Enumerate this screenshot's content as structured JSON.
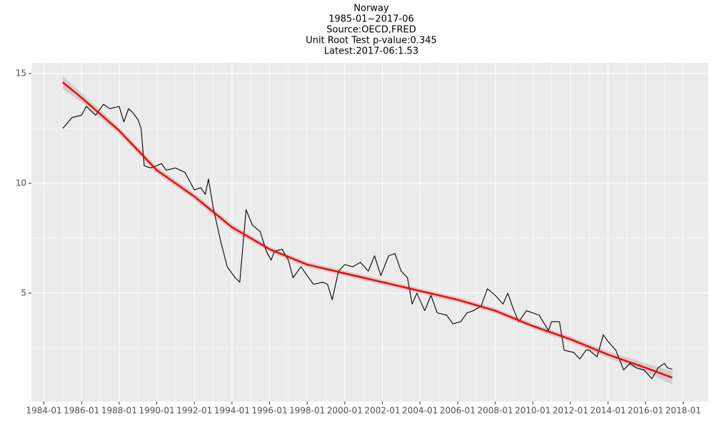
{
  "chart_data": {
    "type": "line",
    "title_lines": [
      "Norway",
      "1985-01~2017-06",
      "Source:OECD,FRED",
      "Unit Root Test p-value:0.345",
      "Latest:2017-06:1.53"
    ],
    "x": [
      "1985-01",
      "1985-07",
      "1986-01",
      "1986-04",
      "1986-10",
      "1987-03",
      "1987-07",
      "1988-01",
      "1988-04",
      "1988-07",
      "1988-10",
      "1989-01",
      "1989-03",
      "1989-05",
      "1989-09",
      "1990-01",
      "1990-04",
      "1990-07",
      "1991-01",
      "1991-07",
      "1992-01",
      "1992-05",
      "1992-08",
      "1992-10",
      "1993-01",
      "1993-06",
      "1993-10",
      "1994-03",
      "1994-06",
      "1994-10",
      "1995-02",
      "1995-07",
      "1995-11",
      "1996-02",
      "1996-04",
      "1996-09",
      "1997-01",
      "1997-04",
      "1997-09",
      "1998-01",
      "1998-05",
      "1998-11",
      "1999-02",
      "1999-05",
      "1999-09",
      "2000-01",
      "2000-06",
      "2000-11",
      "2001-04",
      "2001-08",
      "2001-12",
      "2002-05",
      "2002-09",
      "2003-01",
      "2003-05",
      "2003-08",
      "2003-11",
      "2004-04",
      "2004-08",
      "2004-12",
      "2005-06",
      "2005-10",
      "2006-03",
      "2006-07",
      "2006-11",
      "2007-04",
      "2007-08",
      "2008-01",
      "2008-06",
      "2008-09",
      "2009-01",
      "2009-04",
      "2009-09",
      "2010-01",
      "2010-05",
      "2010-11",
      "2011-01",
      "2011-06",
      "2011-09",
      "2012-03",
      "2012-07",
      "2012-11",
      "2013-01",
      "2013-06",
      "2013-10",
      "2014-01",
      "2014-06",
      "2014-11",
      "2015-03",
      "2015-07",
      "2015-12",
      "2016-05",
      "2016-09",
      "2017-01",
      "2017-03",
      "2017-06"
    ],
    "series": [
      {
        "color": "#000000",
        "values": [
          12.5,
          13.0,
          13.1,
          13.5,
          13.1,
          13.6,
          13.4,
          13.5,
          12.8,
          13.4,
          13.2,
          12.9,
          12.5,
          10.8,
          10.7,
          10.8,
          10.9,
          10.6,
          10.7,
          10.5,
          9.7,
          9.8,
          9.5,
          10.2,
          8.9,
          7.3,
          6.2,
          5.7,
          5.5,
          8.8,
          8.1,
          7.8,
          6.9,
          6.5,
          6.9,
          7.0,
          6.5,
          5.7,
          6.2,
          5.8,
          5.4,
          5.5,
          5.4,
          4.7,
          6.0,
          6.3,
          6.2,
          6.4,
          6.0,
          6.7,
          5.8,
          6.7,
          6.8,
          6.0,
          5.7,
          4.5,
          5.0,
          4.2,
          4.9,
          4.1,
          4.0,
          3.6,
          3.7,
          4.1,
          4.2,
          4.4,
          5.2,
          4.9,
          4.5,
          5.0,
          4.2,
          3.7,
          4.2,
          4.1,
          4.0,
          3.3,
          3.7,
          3.7,
          2.4,
          2.3,
          2.0,
          2.4,
          2.4,
          2.1,
          3.1,
          2.8,
          2.4,
          1.5,
          1.8,
          1.6,
          1.5,
          1.1,
          1.6,
          1.8,
          1.6,
          1.53
        ]
      }
    ],
    "smooth": {
      "color": "#ff0000",
      "x": [
        "1985-01",
        "1986-01",
        "1988-01",
        "1990-01",
        "1992-01",
        "1994-01",
        "1996-01",
        "1998-01",
        "2000-01",
        "2002-01",
        "2004-01",
        "2006-01",
        "2008-01",
        "2010-01",
        "2012-01",
        "2014-01",
        "2016-01",
        "2017-06"
      ],
      "values": [
        14.6,
        13.9,
        12.4,
        10.6,
        9.4,
        8.0,
        7.0,
        6.3,
        5.9,
        5.5,
        5.1,
        4.7,
        4.2,
        3.5,
        2.9,
        2.2,
        1.6,
        1.15
      ],
      "lower": [
        14.3,
        13.7,
        12.25,
        10.45,
        9.25,
        7.85,
        6.88,
        6.18,
        5.78,
        5.38,
        4.98,
        4.58,
        4.08,
        3.38,
        2.77,
        2.05,
        1.4,
        0.85
      ],
      "upper": [
        14.9,
        14.1,
        12.55,
        10.75,
        9.55,
        8.15,
        7.12,
        6.42,
        6.02,
        5.62,
        5.22,
        4.82,
        4.32,
        3.62,
        3.03,
        2.35,
        1.8,
        1.45
      ]
    },
    "xlim": [
      "1983-05",
      "2019-05"
    ],
    "xticks": [
      "1984-01",
      "1986-01",
      "1988-01",
      "1990-01",
      "1992-01",
      "1994-01",
      "1996-01",
      "1998-01",
      "2000-01",
      "2002-01",
      "2004-01",
      "2006-01",
      "2008-01",
      "2010-01",
      "2012-01",
      "2014-01",
      "2016-01",
      "2018-01"
    ],
    "minor_xticks": [
      "1985-01",
      "1987-01",
      "1989-01",
      "1991-01",
      "1993-01",
      "1995-01",
      "1997-01",
      "1999-01",
      "2001-01",
      "2003-01",
      "2005-01",
      "2007-01",
      "2009-01",
      "2011-01",
      "2013-01",
      "2015-01",
      "2017-01"
    ],
    "ylim": [
      0.06,
      15.49
    ],
    "yticks": [
      5,
      10,
      15
    ],
    "minor_yticks": [
      2.5,
      7.5,
      12.5
    ],
    "grid": true
  }
}
